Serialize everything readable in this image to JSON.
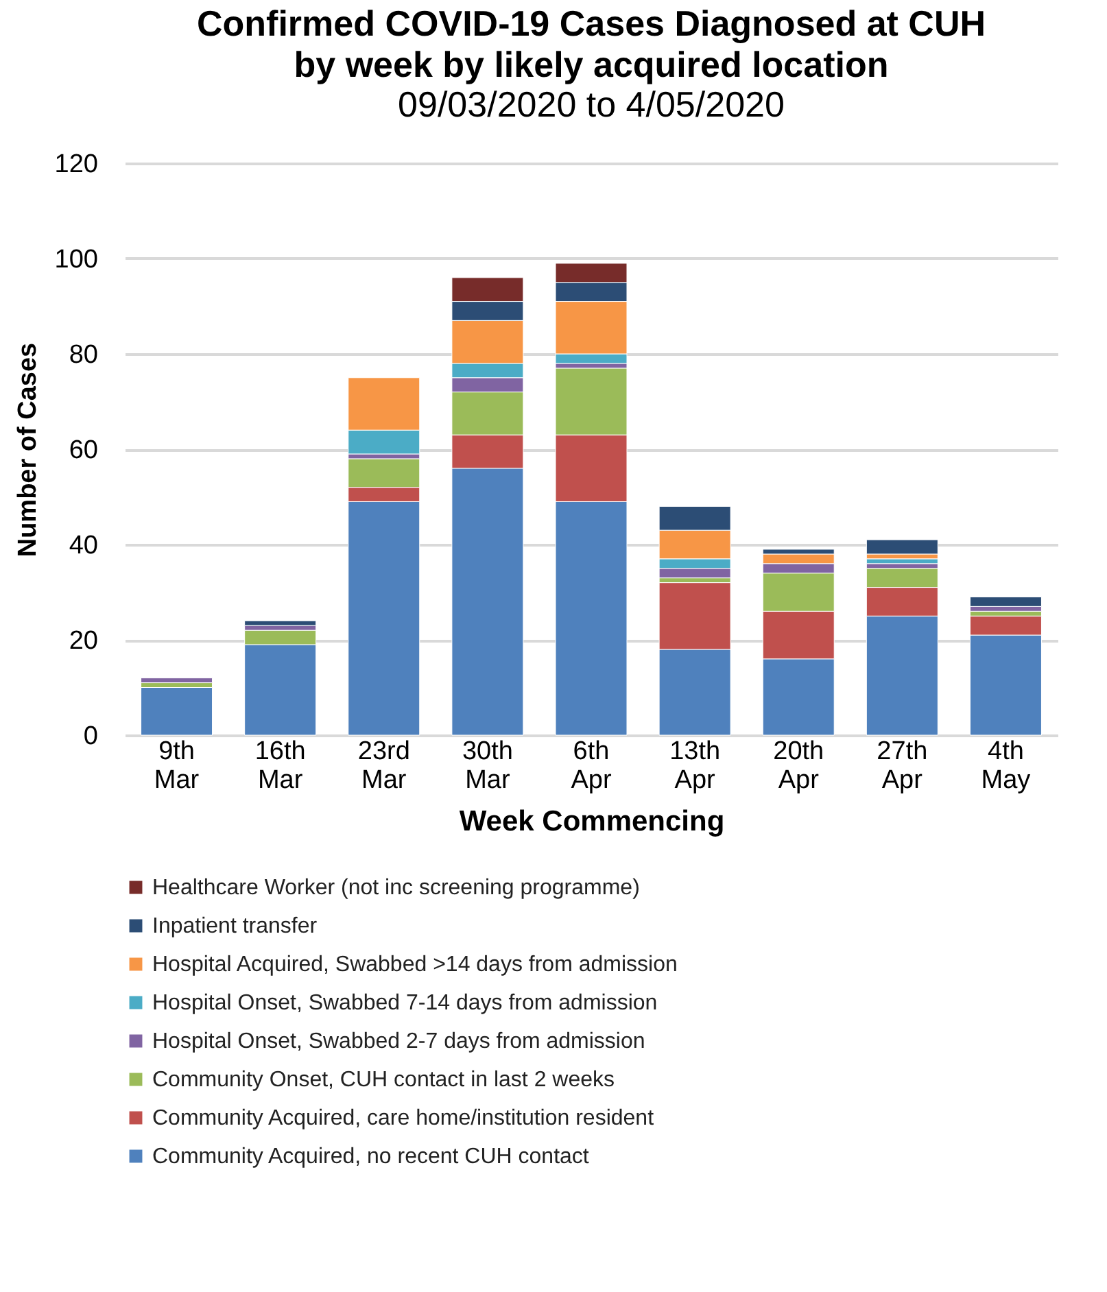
{
  "chart_data": {
    "type": "bar",
    "stacked": true,
    "title": "Confirmed COVID-19 Cases Diagnosed at CUH by week by likely acquired location",
    "subtitle": "09/03/2020 to 4/05/2020",
    "xlabel": "Week Commencing",
    "ylabel": "Number of Cases",
    "categories": [
      "9th Mar",
      "16th Mar",
      "23rd Mar",
      "30th Mar",
      "6th Apr",
      "13th Apr",
      "20th Apr",
      "27th Apr",
      "4th May"
    ],
    "ylim": [
      0,
      120
    ],
    "yticks": [
      0,
      20,
      40,
      60,
      80,
      100,
      120
    ],
    "grid": "y",
    "legend": "bottom",
    "series": [
      {
        "name": "Community Acquired, no recent CUH contact",
        "color": "#4f81bd",
        "values": [
          10,
          19,
          49,
          56,
          49,
          18,
          16,
          25,
          21
        ]
      },
      {
        "name": "Community Acquired, care home/institution resident",
        "color": "#c0504d",
        "values": [
          null,
          null,
          3,
          7,
          14,
          14,
          10,
          6,
          4
        ]
      },
      {
        "name": "Community Onset, CUH contact in last 2 weeks",
        "color": "#9bbb59",
        "values": [
          1,
          3,
          6,
          9,
          14,
          1,
          8,
          4,
          1
        ]
      },
      {
        "name": "Hospital Onset, Swabbed 2-7 days from admission",
        "color": "#8064a2",
        "values": [
          1,
          1,
          1,
          3,
          1,
          2,
          2,
          1,
          1
        ]
      },
      {
        "name": "Hospital Onset, Swabbed 7-14 days from admission",
        "color": "#4bacc6",
        "values": [
          null,
          null,
          5,
          3,
          2,
          2,
          null,
          1,
          null
        ]
      },
      {
        "name": "Hospital Acquired, Swabbed >14 days from admission",
        "color": "#f79646",
        "values": [
          null,
          null,
          11,
          9,
          11,
          6,
          2,
          1,
          null
        ]
      },
      {
        "name": "Inpatient transfer",
        "color": "#2c4d75",
        "values": [
          null,
          1,
          null,
          4,
          4,
          5,
          1,
          3,
          2
        ]
      },
      {
        "name": "Healthcare Worker (not inc screening programme)",
        "color": "#772c2a",
        "values": [
          null,
          null,
          null,
          5,
          4,
          null,
          null,
          null,
          null
        ]
      }
    ]
  }
}
